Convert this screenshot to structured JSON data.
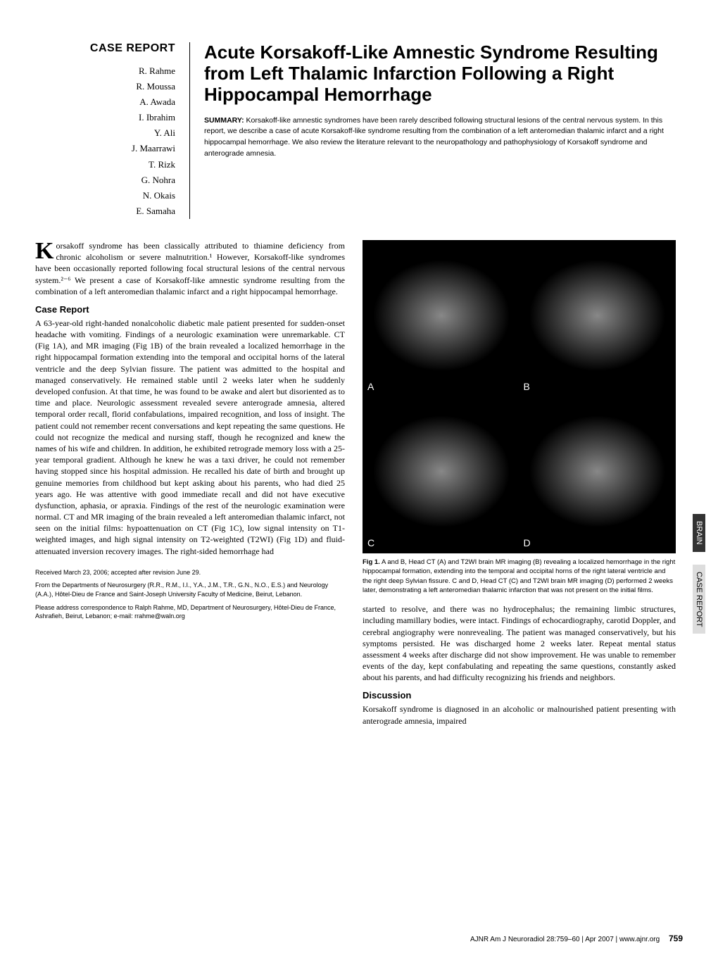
{
  "section_label": "CASE REPORT",
  "authors": [
    "R. Rahme",
    "R. Moussa",
    "A. Awada",
    "I. Ibrahim",
    "Y. Ali",
    "J. Maarrawi",
    "T. Rizk",
    "G. Nohra",
    "N. Okais",
    "E. Samaha"
  ],
  "title": "Acute Korsakoff-Like Amnestic Syndrome Resulting from Left Thalamic Infarction Following a Right Hippocampal Hemorrhage",
  "summary_label": "SUMMARY:",
  "summary": "Korsakoff-like amnestic syndromes have been rarely described following structural lesions of the central nervous system. In this report, we describe a case of acute Korsakoff-like syndrome resulting from the combination of a left anteromedian thalamic infarct and a right hippocampal hemorrhage. We also review the literature relevant to the neuropathology and pathophysiology of Korsakoff syndrome and anterograde amnesia.",
  "intro_para": "Korsakoff syndrome has been classically attributed to thiamine deficiency from chronic alcoholism or severe malnutrition.¹ However, Korsakoff-like syndromes have been occasionally reported following focal structural lesions of the central nervous system.²⁻⁶ We present a case of Korsakoff-like amnestic syndrome resulting from the combination of a left anteromedian thalamic infarct and a right hippocampal hemorrhage.",
  "case_head": "Case Report",
  "case_para": "A 63-year-old right-handed nonalcoholic diabetic male patient presented for sudden-onset headache with vomiting. Findings of a neurologic examination were unremarkable. CT (Fig 1A), and MR imaging (Fig 1B) of the brain revealed a localized hemorrhage in the right hippocampal formation extending into the temporal and occipital horns of the lateral ventricle and the deep Sylvian fissure. The patient was admitted to the hospital and managed conservatively. He remained stable until 2 weeks later when he suddenly developed confusion. At that time, he was found to be awake and alert but disoriented as to time and place. Neurologic assessment revealed severe anterograde amnesia, altered temporal order recall, florid confabulations, impaired recognition, and loss of insight. The patient could not remember recent conversations and kept repeating the same questions. He could not recognize the medical and nursing staff, though he recognized and knew the names of his wife and children. In addition, he exhibited retrograde memory loss with a 25-year temporal gradient. Although he knew he was a taxi driver, he could not remember having stopped since his hospital admission. He recalled his date of birth and brought up genuine memories from childhood but kept asking about his parents, who had died 25 years ago. He was attentive with good immediate recall and did not have executive dysfunction, aphasia, or apraxia. Findings of the rest of the neurologic examination were normal. CT and MR imaging of the brain revealed a left anteromedian thalamic infarct, not seen on the initial films: hypoattenuation on CT (Fig 1C), low signal intensity on T1-weighted images, and high signal intensity on T2-weighted (T2WI) (Fig 1D) and fluid-attenuated inversion recovery images. The right-sided hemorrhage had",
  "footnote1": "Received March 23, 2006; accepted after revision June 29.",
  "footnote2": "From the Departments of Neurosurgery (R.R., R.M., I.I., Y.A., J.M., T.R., G.N., N.O., E.S.) and Neurology (A.A.), Hôtel-Dieu de France and Saint-Joseph University Faculty of Medicine, Beirut, Lebanon.",
  "footnote3": "Please address correspondence to Ralph Rahme, MD, Department of Neurosurgery, Hôtel-Dieu de France, Ashrafieh, Beirut, Lebanon; e-mail: rrahme@waln.org",
  "fig_labels": [
    "A",
    "B",
    "C",
    "D"
  ],
  "figcap_label": "Fig 1.",
  "figcap": "A and B, Head CT (A) and T2WI brain MR imaging (B) revealing a localized hemorrhage in the right hippocampal formation, extending into the temporal and occipital horns of the right lateral ventricle and the right deep Sylvian fissure. C and D, Head CT (C) and T2WI brain MR imaging (D) performed 2 weeks later, demonstrating a left anteromedian thalamic infarction that was not present on the initial films.",
  "right_para1": "started to resolve, and there was no hydrocephalus; the remaining limbic structures, including mamillary bodies, were intact. Findings of echocardiography, carotid Doppler, and cerebral angiography were nonrevealing. The patient was managed conservatively, but his symptoms persisted. He was discharged home 2 weeks later. Repeat mental status assessment 4 weeks after discharge did not show improvement. He was unable to remember events of the day, kept confabulating and repeating the same questions, constantly asked about his parents, and had difficulty recognizing his friends and neighbors.",
  "disc_head": "Discussion",
  "disc_para": "Korsakoff syndrome is diagnosed in an alcoholic or malnourished patient presenting with anterograde amnesia, impaired",
  "tab1": "BRAIN",
  "tab2": "CASE REPORT",
  "footer_journal": "AJNR Am J Neuroradiol 28:759–60",
  "footer_date": "Apr 2007",
  "footer_url": "www.ajnr.org",
  "page_num": "759"
}
